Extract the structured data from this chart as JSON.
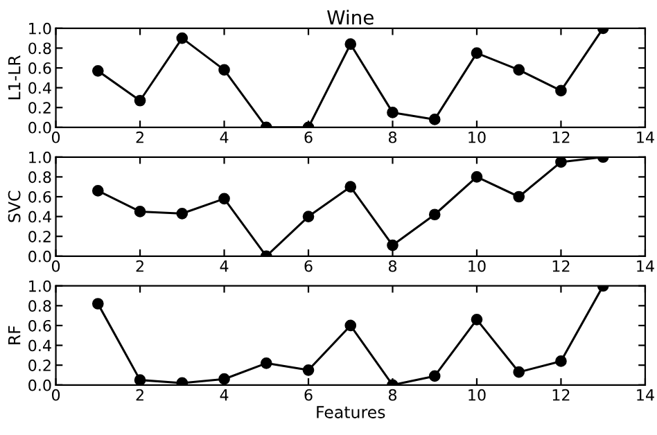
{
  "chart_data": [
    {
      "type": "line",
      "title": "Wine",
      "ylabel": "L1-LR",
      "x": [
        1,
        2,
        3,
        4,
        5,
        6,
        7,
        8,
        9,
        10,
        11,
        12,
        13
      ],
      "marker": "circle",
      "line_style": "solid",
      "grid": false,
      "series": [
        {
          "color": "#000000",
          "values": [
            0.57,
            0.27,
            0.9,
            0.58,
            0.0,
            0.0,
            0.84,
            0.15,
            0.08,
            0.75,
            0.58,
            0.37,
            1.0
          ]
        }
      ],
      "xlim": [
        0,
        14
      ],
      "xticks": [
        0,
        2,
        4,
        6,
        8,
        10,
        12,
        14
      ],
      "ylim": [
        0.0,
        1.0
      ],
      "yticks": [
        {
          "value": 0,
          "label": "0.0"
        },
        {
          "value": 0.2,
          "label": "0.2"
        },
        {
          "value": 0.4,
          "label": "0.4"
        },
        {
          "value": 0.6,
          "label": "0.6"
        },
        {
          "value": 0.8,
          "label": "0.8"
        },
        {
          "value": 1,
          "label": "1.0"
        }
      ]
    },
    {
      "type": "line",
      "ylabel": "SVC",
      "x": [
        1,
        2,
        3,
        4,
        5,
        6,
        7,
        8,
        9,
        10,
        11,
        12,
        13
      ],
      "marker": "circle",
      "line_style": "solid",
      "grid": false,
      "series": [
        {
          "color": "#000000",
          "values": [
            0.66,
            0.45,
            0.43,
            0.58,
            0.0,
            0.4,
            0.7,
            0.11,
            0.42,
            0.8,
            0.6,
            0.95,
            1.0
          ]
        }
      ],
      "xlim": [
        0,
        14
      ],
      "xticks": [
        0,
        2,
        4,
        6,
        8,
        10,
        12,
        14
      ],
      "ylim": [
        0.0,
        1.0
      ],
      "yticks": [
        {
          "value": 0,
          "label": "0.0"
        },
        {
          "value": 0.2,
          "label": "0.2"
        },
        {
          "value": 0.4,
          "label": "0.4"
        },
        {
          "value": 0.6,
          "label": "0.6"
        },
        {
          "value": 0.8,
          "label": "0.8"
        },
        {
          "value": 1,
          "label": "1.0"
        }
      ]
    },
    {
      "type": "line",
      "ylabel": "RF",
      "xlabel": "Features",
      "x": [
        1,
        2,
        3,
        4,
        5,
        6,
        7,
        8,
        9,
        10,
        11,
        12,
        13
      ],
      "marker": "circle",
      "line_style": "solid",
      "grid": false,
      "series": [
        {
          "color": "#000000",
          "values": [
            0.82,
            0.05,
            0.02,
            0.06,
            0.22,
            0.15,
            0.6,
            0.0,
            0.09,
            0.66,
            0.13,
            0.24,
            1.0
          ]
        }
      ],
      "xlim": [
        0,
        14
      ],
      "xticks": [
        0,
        2,
        4,
        6,
        8,
        10,
        12,
        14
      ],
      "ylim": [
        0.0,
        1.0
      ],
      "yticks": [
        {
          "value": 0,
          "label": "0.0"
        },
        {
          "value": 0.2,
          "label": "0.2"
        },
        {
          "value": 0.4,
          "label": "0.4"
        },
        {
          "value": 0.6,
          "label": "0.6"
        },
        {
          "value": 0.8,
          "label": "0.8"
        },
        {
          "value": 1,
          "label": "1.0"
        }
      ]
    }
  ]
}
